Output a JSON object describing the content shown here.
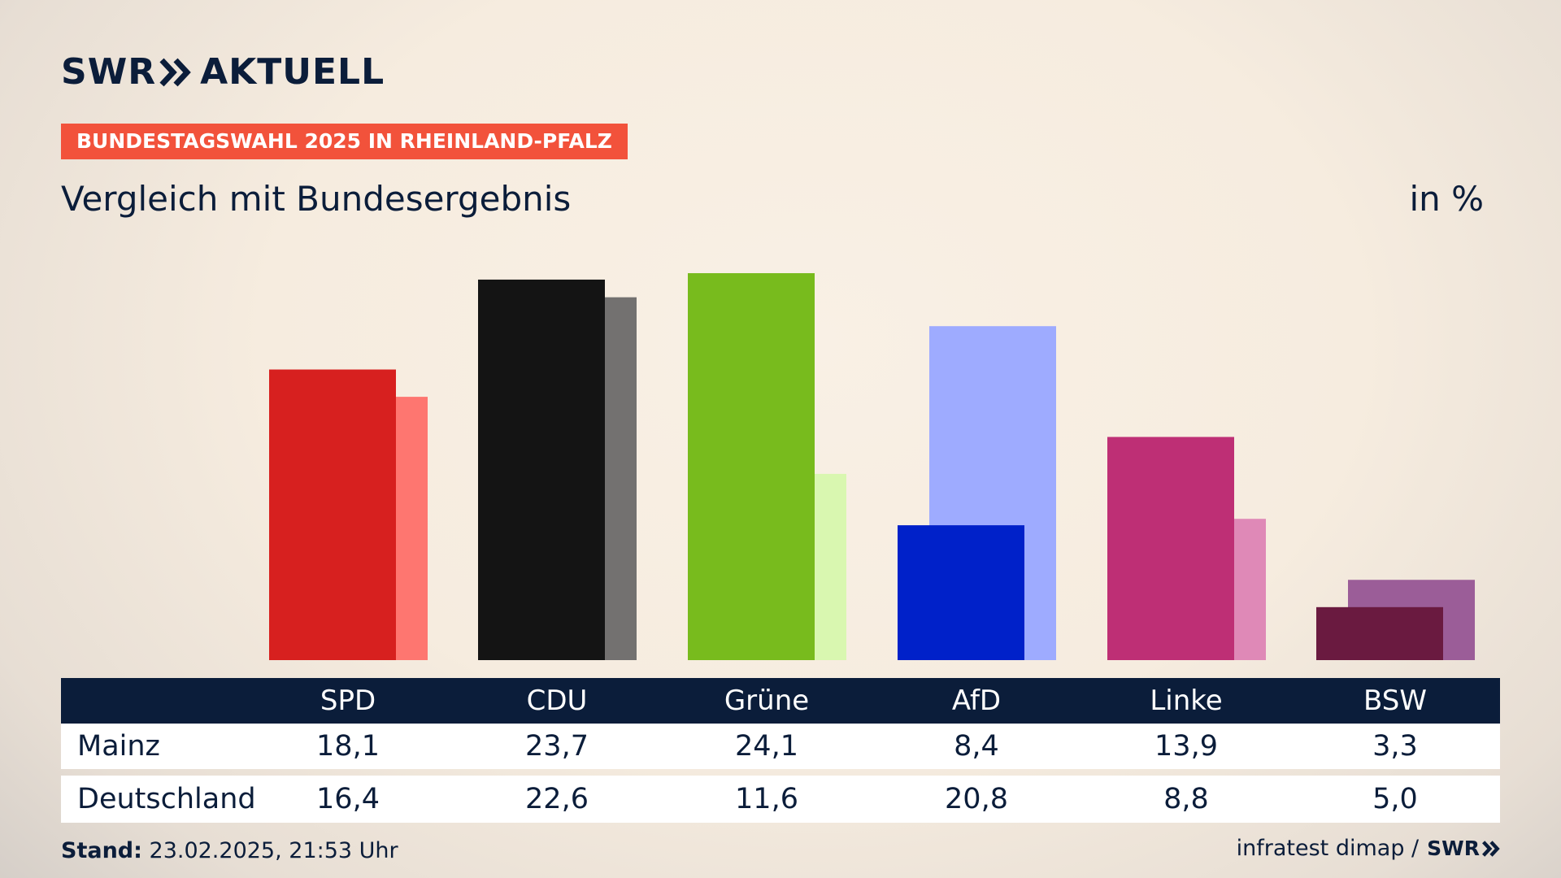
{
  "brand": {
    "logo_left": "SWR",
    "logo_right": "AKTUELL"
  },
  "tag": "BUNDESTAGSWAHL 2025 IN RHEINLAND-PFALZ",
  "colors": {
    "navy": "#0b1d3a",
    "tag_bg": "#f2523b"
  },
  "chart_data": {
    "type": "bar",
    "subtitle": "Vergleich mit Bundesergebnis",
    "unit": "in %",
    "categories": [
      "SPD",
      "CDU",
      "Grüne",
      "AfD",
      "Linke",
      "BSW"
    ],
    "series": [
      {
        "name": "Mainz",
        "values": [
          18.1,
          23.7,
          24.1,
          8.4,
          13.9,
          3.3
        ],
        "colors": [
          "#d7201f",
          "#141414",
          "#78bb1d",
          "#0021c9",
          "#be2f75",
          "#6a1a40"
        ]
      },
      {
        "name": "Deutschland",
        "values": [
          16.4,
          22.6,
          11.6,
          20.8,
          8.8,
          5.0
        ],
        "colors": [
          "#fe7670",
          "#737170",
          "#d9f7b0",
          "#9eabff",
          "#df89b7",
          "#9b5d98"
        ]
      }
    ],
    "ylim": [
      0,
      25
    ]
  },
  "table": {
    "rows": [
      {
        "label": "Mainz",
        "values": [
          "18,1",
          "23,7",
          "24,1",
          "8,4",
          "13,9",
          "3,3"
        ]
      },
      {
        "label": "Deutschland",
        "values": [
          "16,4",
          "22,6",
          "11,6",
          "20,8",
          "8,8",
          "5,0"
        ]
      }
    ]
  },
  "footer": {
    "stand_label": "Stand:",
    "stand_value": "23.02.2025, 21:53 Uhr",
    "source": "infratest dimap /",
    "source_logo": "SWR"
  }
}
